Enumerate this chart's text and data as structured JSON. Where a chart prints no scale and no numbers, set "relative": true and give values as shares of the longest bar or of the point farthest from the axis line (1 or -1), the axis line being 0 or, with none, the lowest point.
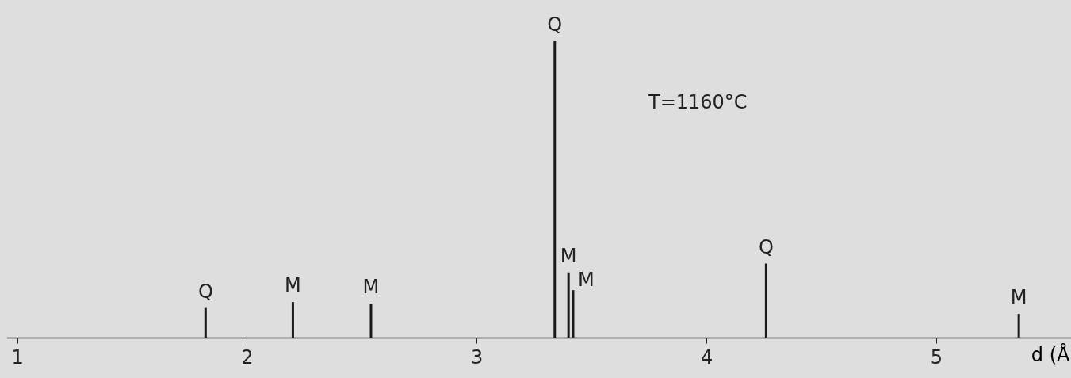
{
  "chart_data": {
    "type": "bar",
    "relative": true,
    "xlabel": "d (Å",
    "xlim": [
      0.97,
      5.57
    ],
    "xticks": [
      1,
      2,
      3,
      4,
      5
    ],
    "tick_labels": "x",
    "annotations": [
      "T=1160°C",
      {
        "text": "Q",
        "x": 1.82,
        "y": 0.1
      },
      {
        "text": "M",
        "x": 2.2,
        "y": 0.12
      },
      {
        "text": "M",
        "x": 2.54,
        "y": 0.115
      },
      {
        "text": "Q",
        "x": 3.34,
        "y": 1
      },
      {
        "text": "M",
        "x": 3.4,
        "y": 0.22
      },
      {
        "text": "M",
        "x": 3.42,
        "y": 0.16
      },
      {
        "text": "Q",
        "x": 4.26,
        "y": 0.25
      },
      {
        "text": "M",
        "x": 5.36,
        "y": 0.08
      }
    ],
    "series": [
      {
        "color": "#1a1a1a",
        "x": [
          1.82,
          2.2,
          2.54,
          3.34,
          3.4,
          3.42,
          4.26,
          5.36
        ],
        "values": [
          0.1,
          0.12,
          0.115,
          1,
          0.22,
          0.16,
          0.25,
          0.08
        ]
      }
    ]
  }
}
